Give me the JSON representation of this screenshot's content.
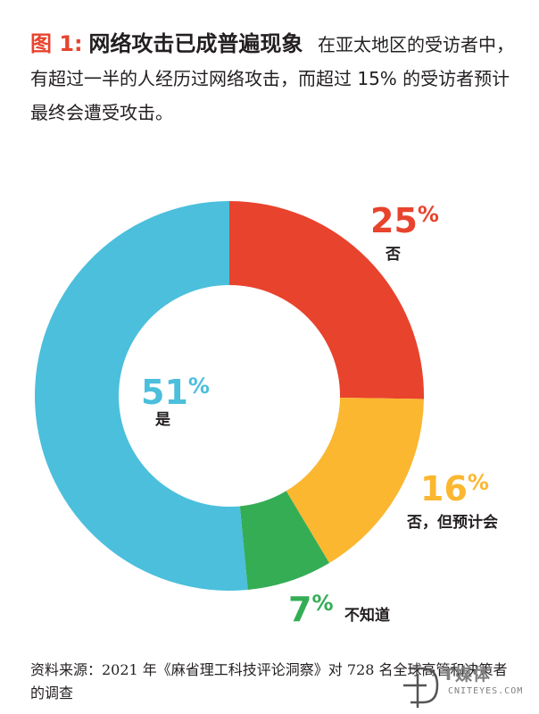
{
  "header": {
    "fig_num": "图 1:",
    "title": "网络攻击已成普遍现象",
    "description": "在亚太地区的受访者中，有超过一半的人经历过网络攻击，而超过 15% 的受访者预计最终会遭受攻击。"
  },
  "chart_data": {
    "type": "pie",
    "donut": true,
    "categories": [
      "否",
      "否，但预计会",
      "不知道",
      "是"
    ],
    "values": [
      25,
      16,
      7,
      51
    ],
    "colors": [
      "#e8432d",
      "#fbb730",
      "#34ad55",
      "#4bbfdc"
    ],
    "value_labels": [
      "25",
      "16",
      "7",
      "51"
    ],
    "percent_sign": "%"
  },
  "source": "资料来源：2021 年《麻省理工科技评论洞察》对 728 名全球高管和决策者的调查",
  "logo": {
    "cn": "T媒体",
    "en": "CNITEYES.COM"
  }
}
